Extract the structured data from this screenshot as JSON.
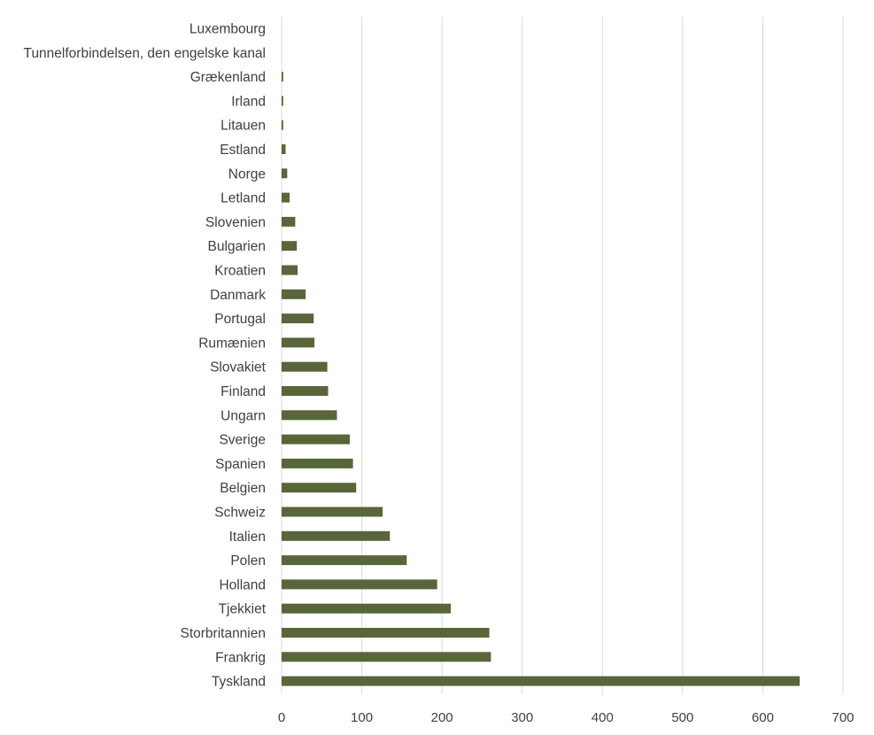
{
  "chart_data": {
    "type": "bar",
    "orientation": "horizontal",
    "categories": [
      "Luxembourg",
      "Tunnelforbindelsen, den engelske kanal",
      "Grækenland",
      "Irland",
      "Litauen",
      "Estland",
      "Norge",
      "Letland",
      "Slovenien",
      "Bulgarien",
      "Kroatien",
      "Danmark",
      "Portugal",
      "Rumænien",
      "Slovakiet",
      "Finland",
      "Ungarn",
      "Sverige",
      "Spanien",
      "Belgien",
      "Schweiz",
      "Italien",
      "Polen",
      "Holland",
      "Tjekkiet",
      "Storbritannien",
      "Frankrig",
      "Tyskland"
    ],
    "values": [
      0,
      0,
      2,
      2,
      2,
      5,
      7,
      10,
      17,
      19,
      20,
      30,
      40,
      41,
      57,
      58,
      69,
      85,
      89,
      93,
      126,
      135,
      156,
      194,
      211,
      259,
      261,
      646
    ],
    "x_ticks": [
      "0",
      "100",
      "200",
      "300",
      "400",
      "500",
      "600",
      "700"
    ],
    "xlim": [
      0,
      700
    ],
    "grid": true,
    "legend": false,
    "bar_color": "#58663a"
  }
}
